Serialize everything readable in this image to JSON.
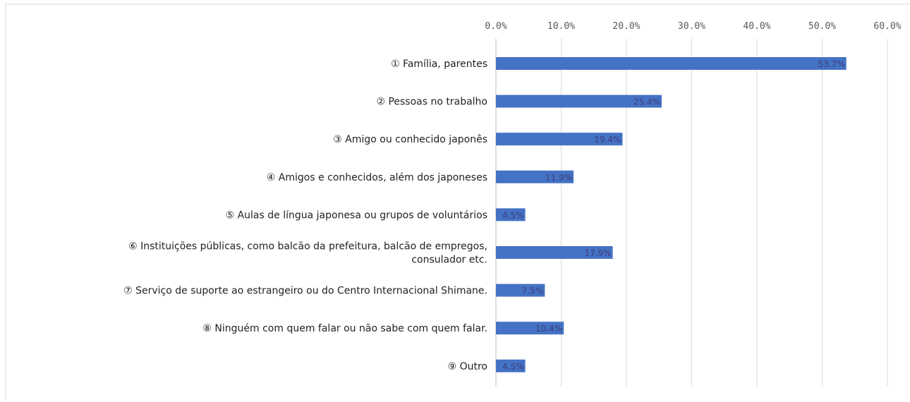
{
  "chart_data": {
    "type": "bar",
    "orientation": "horizontal",
    "categories": [
      [
        "① Família, parentes"
      ],
      [
        "② Pessoas no trabalho"
      ],
      [
        "③ Amigo ou conhecido japonês"
      ],
      [
        "④ Amigos e conhecidos, além dos japoneses"
      ],
      [
        "⑤ Aulas de língua japonesa ou grupos de voluntários"
      ],
      [
        "⑥ Instituições públicas, como balcão da prefeitura, balcão de empregos,",
        "consulador etc."
      ],
      [
        "⑦ Serviço de suporte ao estrangeiro ou do Centro Internacional Shimane."
      ],
      [
        "⑧ Ninguém com quem falar ou não sabe com quem falar."
      ],
      [
        "⑨ Outro"
      ]
    ],
    "values": [
      53.7,
      25.4,
      19.4,
      11.9,
      4.5,
      17.9,
      7.5,
      10.4,
      4.5
    ],
    "data_labels": [
      "53.7%",
      "25.4%",
      "19.4%",
      "11.9%",
      "4.5%",
      "17.9%",
      "7.5%",
      "10.4%",
      "4.5%"
    ],
    "xticks": [
      "0.0%",
      "10.0%",
      "20.0%",
      "30.0%",
      "40.0%",
      "50.0%",
      "60.0%"
    ],
    "xlim": [
      0,
      60
    ],
    "xaxis_position": "top",
    "grid": "vertical",
    "legend": "none",
    "bar_color": "#4472c4",
    "title": "",
    "xlabel": "",
    "ylabel": ""
  }
}
